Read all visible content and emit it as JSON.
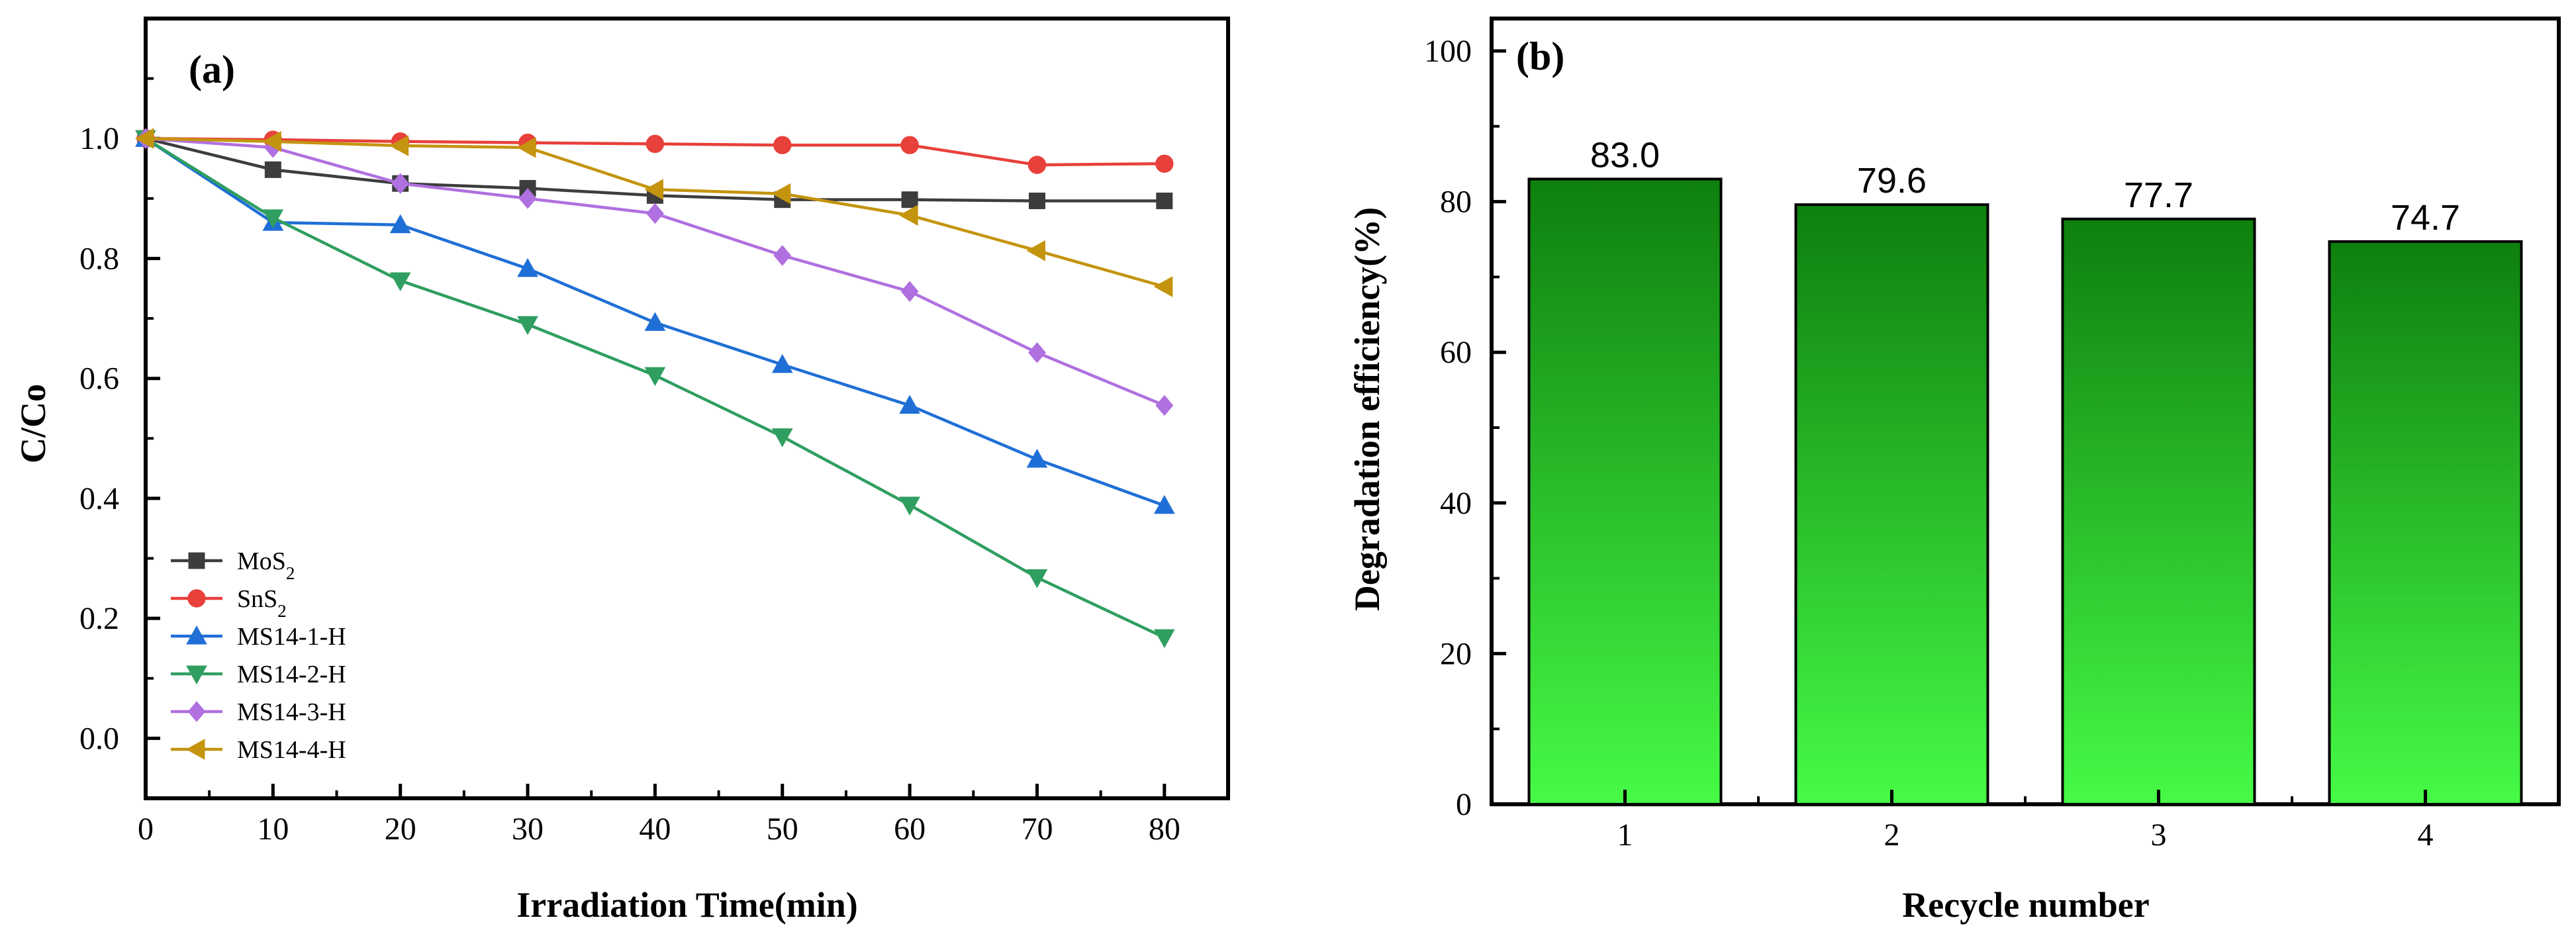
{
  "chart_data": [
    {
      "type": "line",
      "panel_label": "(a)",
      "xlabel": "Irradiation Time(min)",
      "ylabel": "C/Co",
      "xlim": [
        0,
        85
      ],
      "ylim": [
        -0.1,
        1.2
      ],
      "xticks": [
        0,
        10,
        20,
        30,
        40,
        50,
        60,
        70,
        80
      ],
      "yticks": [
        0.0,
        0.2,
        0.4,
        0.6,
        0.8,
        1.0
      ],
      "ytick_labels": [
        "0.0",
        "0.2",
        "0.4",
        "0.6",
        "0.8",
        "1.0"
      ],
      "legend_position": "bottom-left",
      "x": [
        0,
        10,
        20,
        30,
        40,
        50,
        60,
        70,
        80
      ],
      "series": [
        {
          "name": "MoS",
          "sub": "2",
          "color": "#3d3d3d",
          "marker": "square",
          "values": [
            1.0,
            0.948,
            0.925,
            0.917,
            0.905,
            0.898,
            0.898,
            0.896,
            0.896
          ]
        },
        {
          "name": "SnS",
          "sub": "2",
          "color": "#e8403a",
          "marker": "circle",
          "values": [
            1.0,
            0.998,
            0.995,
            0.993,
            0.991,
            0.989,
            0.989,
            0.956,
            0.958
          ]
        },
        {
          "name": "MS14-1-H",
          "sub": "",
          "color": "#1f6fd6",
          "marker": "triangle-up",
          "values": [
            1.0,
            0.86,
            0.856,
            0.783,
            0.693,
            0.623,
            0.555,
            0.465,
            0.388
          ]
        },
        {
          "name": "MS14-2-H",
          "sub": "",
          "color": "#2f9e60",
          "marker": "triangle-down",
          "values": [
            1.0,
            0.868,
            0.763,
            0.69,
            0.605,
            0.503,
            0.389,
            0.268,
            0.168
          ]
        },
        {
          "name": "MS14-3-H",
          "sub": "",
          "color": "#b070e0",
          "marker": "diamond",
          "values": [
            1.0,
            0.985,
            0.925,
            0.9,
            0.875,
            0.805,
            0.745,
            0.643,
            0.555
          ]
        },
        {
          "name": "MS14-4-H",
          "sub": "",
          "color": "#c4940e",
          "marker": "triangle-left",
          "values": [
            1.0,
            0.995,
            0.988,
            0.985,
            0.915,
            0.908,
            0.872,
            0.813,
            0.753
          ]
        }
      ]
    },
    {
      "type": "bar",
      "panel_label": "(b)",
      "xlabel": "Recycle number",
      "ylabel": "Degradation efficiency(%)",
      "ylim": [
        0,
        100
      ],
      "yticks": [
        0,
        20,
        40,
        60,
        80,
        100
      ],
      "categories": [
        "1",
        "2",
        "3",
        "4"
      ],
      "values": [
        83.0,
        79.6,
        77.7,
        74.7
      ],
      "value_labels": [
        "83.0",
        "79.6",
        "77.7",
        "74.7"
      ],
      "bar_gradient_top": "#0e7f0e",
      "bar_gradient_bottom": "#46fb46"
    }
  ]
}
